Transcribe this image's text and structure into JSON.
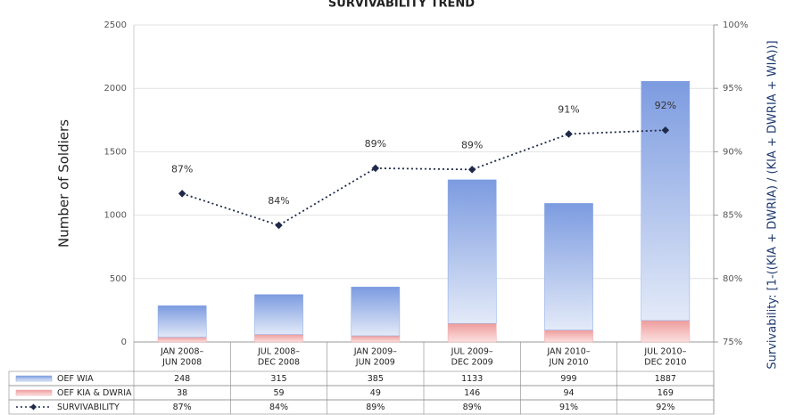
{
  "chart_data": {
    "type": "bar",
    "title": "SURVIVABILITY TREND",
    "y_label": "Number of Soldiers",
    "y2_label": "Survivability: [1-((KIA + DWRIA) / (KIA + DWRIA + WIA))]",
    "categories": [
      [
        "JAN 2008–",
        "JUN 2008"
      ],
      [
        "JUL 2008–",
        "DEC 2008"
      ],
      [
        "JAN 2009–",
        "JUN 2009"
      ],
      [
        "JUL 2009–",
        "DEC 2009"
      ],
      [
        "JAN 2010–",
        "JUN 2010"
      ],
      [
        "JUL 2010–",
        "DEC 2010"
      ]
    ],
    "stacked": true,
    "series": [
      {
        "name": "OEF KIA & DWRIA",
        "color": "#f0a8a8",
        "values": [
          38,
          59,
          49,
          146,
          94,
          169
        ]
      },
      {
        "name": "OEF WIA",
        "color": "#86a6e4",
        "values": [
          248,
          315,
          385,
          1133,
          999,
          1887
        ]
      },
      {
        "name": "SURVIVABILITY",
        "type": "line",
        "axis": "y2",
        "color": "#1f2a4a",
        "values": [
          86.7,
          84.2,
          88.7,
          88.6,
          91.4,
          91.7
        ],
        "value_labels": [
          "87%",
          "84%",
          "89%",
          "89%",
          "91%",
          "92%"
        ]
      }
    ],
    "table_order": [
      1,
      0,
      2
    ],
    "ylim": [
      0,
      2500
    ],
    "yticks": [
      0,
      500,
      1000,
      1500,
      2000,
      2500
    ],
    "y2lim": [
      75,
      100
    ],
    "y2ticks": [
      {
        "value": 75,
        "label": "75%"
      },
      {
        "value": 80,
        "label": "80%"
      },
      {
        "value": 85,
        "label": "85%"
      },
      {
        "value": 90,
        "label": "90%"
      },
      {
        "value": 95,
        "label": "95%"
      },
      {
        "value": 100,
        "label": "100%"
      }
    ],
    "grid": true
  }
}
